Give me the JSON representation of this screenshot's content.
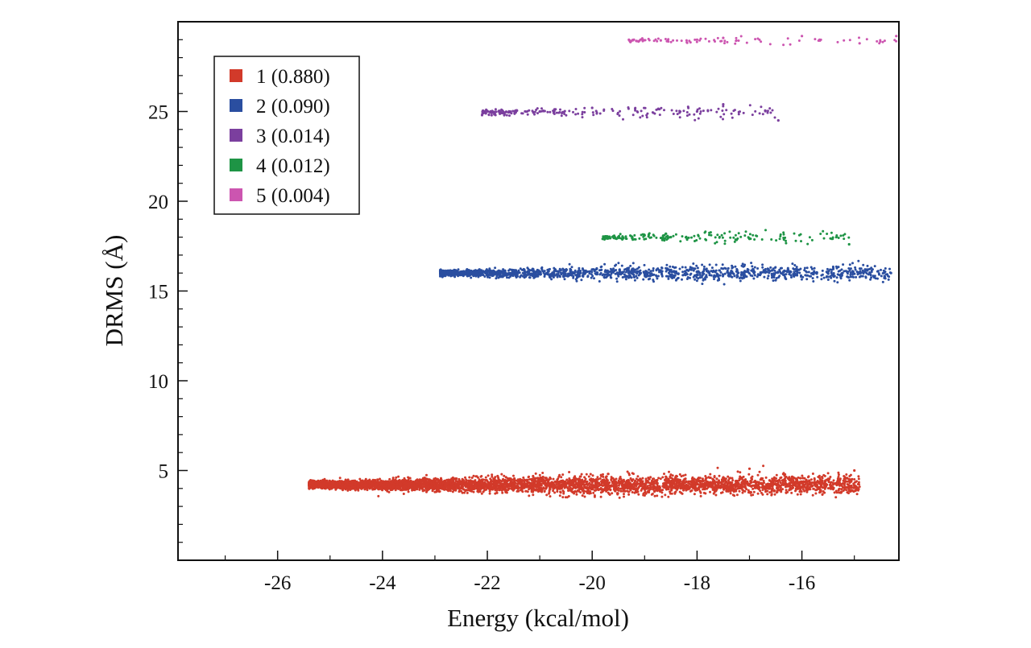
{
  "chart_data": {
    "type": "scatter",
    "title": "",
    "xlabel": "Energy (kcal/mol)",
    "ylabel": "DRMS (Å)",
    "xlim": [
      -27.9,
      -14.15
    ],
    "ylim": [
      0,
      30
    ],
    "xticks": [
      -26,
      -24,
      -22,
      -20,
      -18,
      -16
    ],
    "xtick_labels": [
      "-26",
      "-24",
      "-22",
      "-20",
      "-18",
      "-16"
    ],
    "yticks": [
      5,
      10,
      15,
      20,
      25
    ],
    "ytick_labels": [
      "5",
      "10",
      "15",
      "20",
      "25"
    ],
    "grid": false,
    "legend_position": "top-left",
    "series": [
      {
        "name": "1 (0.880)",
        "color": "#d23a2a",
        "n_points": 5200,
        "x_range": [
          -25.4,
          -14.9
        ],
        "y_center": 4.2,
        "y_spread_max": 0.55,
        "sample_points": [
          [
            -25.4,
            4.3
          ],
          [
            -24.0,
            4.2
          ],
          [
            -22.0,
            4.2
          ],
          [
            -20.0,
            4.1
          ],
          [
            -18.0,
            4.4
          ],
          [
            -17.0,
            5.1
          ],
          [
            -15.4,
            4.0
          ],
          [
            -15.0,
            5.0
          ]
        ]
      },
      {
        "name": "2 (0.090)",
        "color": "#2a4ea0",
        "n_points": 1600,
        "x_range": [
          -22.9,
          -14.3
        ],
        "y_center": 16.0,
        "y_spread_max": 0.45,
        "sample_points": [
          [
            -22.9,
            16.1
          ],
          [
            -21.0,
            16.0
          ],
          [
            -19.5,
            16.0
          ],
          [
            -18.5,
            15.8
          ],
          [
            -16.5,
            15.6
          ],
          [
            -15.5,
            16.0
          ],
          [
            -14.3,
            16.0
          ]
        ]
      },
      {
        "name": "3 (0.014)",
        "color": "#7b3f9e",
        "n_points": 230,
        "x_range": [
          -22.1,
          -16.45
        ],
        "y_center": 24.95,
        "y_spread_max": 0.4,
        "sample_points": [
          [
            -22.1,
            24.8
          ],
          [
            -21.0,
            25.0
          ],
          [
            -20.0,
            25.2
          ],
          [
            -18.0,
            25.0
          ],
          [
            -17.5,
            25.4
          ],
          [
            -16.45,
            24.5
          ]
        ]
      },
      {
        "name": "4 (0.012)",
        "color": "#1e9445",
        "n_points": 200,
        "x_range": [
          -19.8,
          -15.1
        ],
        "y_center": 18.0,
        "y_spread_max": 0.35,
        "sample_points": [
          [
            -19.8,
            17.9
          ],
          [
            -19.0,
            18.1
          ],
          [
            -18.5,
            18.0
          ],
          [
            -17.0,
            17.9
          ],
          [
            -15.1,
            17.6
          ]
        ]
      },
      {
        "name": "5 (0.004)",
        "color": "#cc55b0",
        "n_points": 100,
        "x_range": [
          -19.3,
          -14.2
        ],
        "y_center": 28.95,
        "y_spread_max": 0.25,
        "sample_points": [
          [
            -19.3,
            29.0
          ],
          [
            -18.0,
            29.0
          ],
          [
            -17.5,
            29.1
          ],
          [
            -16.0,
            29.2
          ],
          [
            -14.9,
            28.8
          ],
          [
            -14.2,
            29.2
          ]
        ]
      }
    ]
  }
}
